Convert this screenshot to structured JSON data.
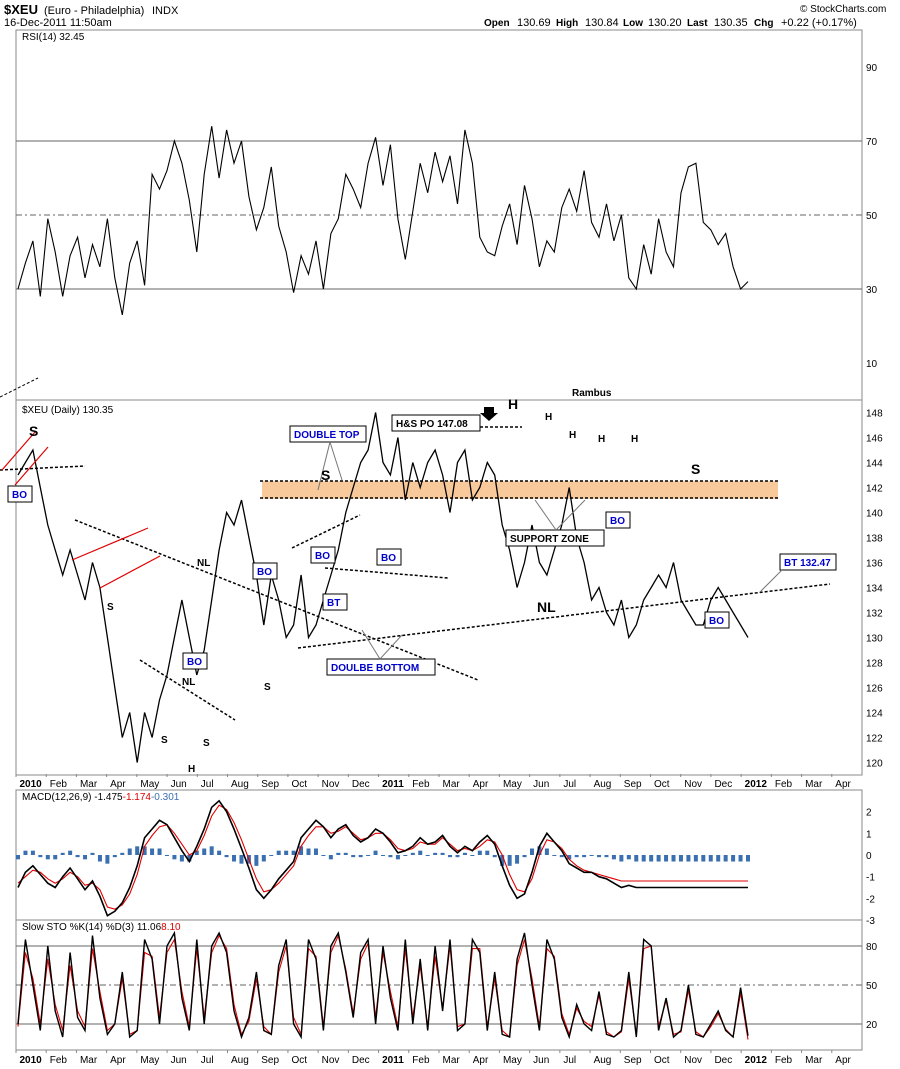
{
  "header": {
    "symbol": "$XEU",
    "description": "(Euro - Philadelphia)",
    "exchange": "INDX",
    "date": "16-Dec-2011 11:50am",
    "open_label": "Open",
    "open": "130.69",
    "high_label": "High",
    "high": "130.84",
    "low_label": "Low",
    "low": "130.20",
    "last_label": "Last",
    "last": "130.35",
    "chg_label": "Chg",
    "chg": "+0.22 (+0.17%)",
    "copyright": "© StockCharts.com"
  },
  "colors": {
    "price": "#000000",
    "signal": "#e00000",
    "histogram": "#3a6fb0",
    "zone": "#f7c08a",
    "label_text": "#0000cc",
    "overbought": "#4a7a4a",
    "oversold": "#8a4a4a"
  },
  "chart_data": [
    {
      "type": "line",
      "title": "RSI(14) 32.45",
      "legend": "RSI(14) 32.45",
      "ylim": [
        0,
        100
      ],
      "yticks": [
        10,
        30,
        50,
        70,
        90
      ],
      "reference_lines": [
        30,
        50,
        70
      ],
      "x": [
        0,
        5,
        10,
        15,
        20,
        25,
        30,
        35,
        40,
        45,
        50,
        55,
        60,
        65,
        70,
        75,
        80,
        85,
        90,
        95,
        100,
        105,
        110,
        115,
        120,
        125,
        130,
        135,
        140,
        145,
        150,
        155,
        160,
        165,
        170,
        175,
        180,
        185,
        190,
        195,
        200,
        205,
        210,
        215,
        220,
        225,
        230,
        235,
        240,
        245,
        250,
        255,
        260,
        265,
        270,
        275,
        280,
        285,
        290,
        295,
        300,
        305,
        310,
        315,
        320,
        325,
        330,
        335,
        340,
        345,
        350,
        355,
        360,
        365,
        370,
        375,
        380,
        385,
        390,
        395,
        400,
        405,
        410,
        415,
        420,
        425,
        430,
        435,
        440,
        445,
        450,
        455,
        460,
        465,
        470,
        475,
        480,
        485,
        490
      ],
      "values": [
        30,
        37,
        43,
        28,
        49,
        40,
        28,
        39,
        44,
        33,
        42,
        36,
        49,
        33,
        23,
        37,
        43,
        31,
        61,
        57,
        62,
        70,
        64,
        54,
        40,
        61,
        74,
        60,
        73,
        64,
        70,
        55,
        46,
        52,
        63,
        47,
        40,
        29,
        39,
        34,
        43,
        30,
        45,
        49,
        61,
        57,
        52,
        64,
        71,
        58,
        69,
        49,
        38,
        51,
        64,
        56,
        67,
        59,
        66,
        53,
        73,
        64,
        44,
        40,
        39,
        47,
        53,
        42,
        58,
        49,
        36,
        43,
        40,
        52,
        57,
        51,
        62,
        48,
        44,
        53,
        43,
        50,
        33,
        30,
        42,
        34,
        49,
        40,
        36,
        56,
        63,
        64,
        48,
        46,
        42,
        45,
        36,
        30,
        32
      ]
    },
    {
      "type": "line",
      "title": "$XEU (Daily) 130.35",
      "legend": "$XEU (Daily) 130.35",
      "ylim": [
        119,
        149
      ],
      "yticks": [
        120,
        122,
        124,
        126,
        128,
        130,
        132,
        134,
        136,
        138,
        140,
        142,
        144,
        146,
        148
      ],
      "x": [
        0,
        5,
        10,
        15,
        20,
        25,
        30,
        35,
        40,
        45,
        50,
        55,
        60,
        65,
        70,
        75,
        80,
        85,
        90,
        95,
        100,
        105,
        110,
        115,
        120,
        125,
        130,
        135,
        140,
        145,
        150,
        155,
        160,
        165,
        170,
        175,
        180,
        185,
        190,
        195,
        200,
        205,
        210,
        215,
        220,
        225,
        230,
        235,
        240,
        245,
        250,
        255,
        260,
        265,
        270,
        275,
        280,
        285,
        290,
        295,
        300,
        305,
        310,
        315,
        320,
        325,
        330,
        335,
        340,
        345,
        350,
        355,
        360,
        365,
        370,
        375,
        380,
        385,
        390,
        395,
        400,
        405,
        410,
        415,
        420,
        425,
        430,
        435,
        440,
        445,
        450,
        455,
        460,
        465,
        470,
        475,
        480,
        485,
        490
      ],
      "values": [
        143,
        144,
        145,
        142,
        139,
        137,
        135,
        137,
        135,
        133,
        136,
        134,
        130,
        126,
        122,
        124,
        120,
        124,
        122,
        125,
        127,
        130,
        133,
        130,
        127,
        129,
        133,
        137,
        140,
        139,
        141,
        138,
        135,
        131,
        135,
        133,
        130,
        131,
        135,
        130,
        131,
        133,
        135,
        137,
        140,
        142,
        144,
        145,
        148,
        144,
        143,
        146,
        141,
        144,
        142,
        144,
        145,
        143,
        140,
        144,
        145,
        141,
        142,
        144,
        143,
        139,
        137,
        134,
        136,
        139,
        136,
        135,
        137,
        139,
        142,
        138,
        136,
        133,
        134,
        132,
        131,
        133,
        130,
        131,
        133,
        134,
        135,
        134,
        136,
        133,
        132,
        131,
        131,
        133,
        134,
        133,
        132,
        131,
        130
      ],
      "annotations": [
        "S",
        "BO",
        "S",
        "NL",
        "BO",
        "NL",
        "S",
        "S",
        "H",
        "S",
        "BO",
        "DOUBLE TOP",
        "S",
        "BO",
        "BT",
        "BO",
        "DOULBE BOTTOM",
        "H&S PO 147.08",
        "H",
        "H",
        "H",
        "H",
        "H",
        "SUPPORT ZONE",
        "BO",
        "S",
        "NL",
        "BT 132.47",
        "BO",
        "Rambus"
      ]
    },
    {
      "type": "line",
      "title": "MACD(12,26,9) -1.475, -1.174, -0.301",
      "legend": [
        "MACD(12,26,9) -1.475",
        "-1.174",
        "-0.301"
      ],
      "ylim": [
        -3,
        3
      ],
      "yticks": [
        -3,
        -2,
        -1,
        0,
        1,
        2
      ],
      "x": [
        0,
        5,
        10,
        15,
        20,
        25,
        30,
        35,
        40,
        45,
        50,
        55,
        60,
        65,
        70,
        75,
        80,
        85,
        90,
        95,
        100,
        105,
        110,
        115,
        120,
        125,
        130,
        135,
        140,
        145,
        150,
        155,
        160,
        165,
        170,
        175,
        180,
        185,
        190,
        195,
        200,
        205,
        210,
        215,
        220,
        225,
        230,
        235,
        240,
        245,
        250,
        255,
        260,
        265,
        270,
        275,
        280,
        285,
        290,
        295,
        300,
        305,
        310,
        315,
        320,
        325,
        330,
        335,
        340,
        345,
        350,
        355,
        360,
        365,
        370,
        375,
        380,
        385,
        390,
        395,
        400,
        405,
        410,
        415,
        420,
        425,
        430,
        435,
        440,
        445,
        450,
        455,
        460,
        465,
        470,
        475,
        480,
        485,
        490
      ],
      "series": [
        {
          "name": "MACD(12,26,9) -1.475",
          "values": [
            -1.5,
            -0.8,
            -0.5,
            -0.9,
            -1.3,
            -1.5,
            -1.0,
            -0.6,
            -1.1,
            -1.6,
            -1.2,
            -1.9,
            -2.8,
            -2.6,
            -2.2,
            -1.5,
            -0.5,
            0.8,
            1.2,
            1.6,
            1.4,
            0.8,
            0.2,
            -0.3,
            0.4,
            1.2,
            2.2,
            2.5,
            2.0,
            1.2,
            0.3,
            -0.6,
            -1.6,
            -2.0,
            -1.6,
            -1.1,
            -0.7,
            -0.3,
            0.8,
            1.2,
            1.6,
            1.3,
            0.8,
            1.2,
            1.4,
            0.9,
            0.6,
            0.8,
            1.2,
            1.0,
            0.6,
            0.1,
            0.2,
            0.4,
            0.8,
            0.5,
            0.6,
            0.9,
            0.4,
            0.1,
            0.4,
            0.2,
            0.6,
            0.9,
            0.5,
            -0.5,
            -1.4,
            -2.0,
            -1.8,
            -0.8,
            0.4,
            1.0,
            0.6,
            0.2,
            -0.4,
            -0.6,
            -0.8,
            -0.8,
            -1.0,
            -1.1,
            -1.3,
            -1.5,
            -1.4,
            -1.5,
            -1.5,
            -1.5,
            -1.5,
            -1.5,
            -1.5,
            -1.5,
            -1.5,
            -1.5,
            -1.5,
            -1.5,
            -1.5,
            -1.5,
            -1.5,
            -1.5,
            -1.5
          ]
        },
        {
          "name": "-1.174",
          "values": [
            -1.3,
            -1.0,
            -0.7,
            -0.8,
            -1.1,
            -1.3,
            -1.1,
            -0.8,
            -1.0,
            -1.4,
            -1.3,
            -1.6,
            -2.4,
            -2.5,
            -2.3,
            -1.8,
            -0.9,
            0.4,
            0.9,
            1.3,
            1.4,
            1.0,
            0.5,
            0.0,
            0.2,
            0.9,
            1.8,
            2.3,
            2.1,
            1.5,
            0.7,
            -0.2,
            -1.1,
            -1.7,
            -1.6,
            -1.3,
            -0.9,
            -0.5,
            0.4,
            0.9,
            1.3,
            1.3,
            1.0,
            1.1,
            1.3,
            1.0,
            0.7,
            0.8,
            1.0,
            1.0,
            0.7,
            0.3,
            0.2,
            0.3,
            0.6,
            0.5,
            0.5,
            0.8,
            0.5,
            0.2,
            0.3,
            0.2,
            0.4,
            0.7,
            0.6,
            0.0,
            -0.9,
            -1.6,
            -1.7,
            -1.1,
            0.0,
            0.7,
            0.6,
            0.3,
            -0.2,
            -0.5,
            -0.7,
            -0.8,
            -0.9,
            -1.0,
            -1.1,
            -1.2,
            -1.2,
            -1.2,
            -1.2,
            -1.2,
            -1.2,
            -1.2,
            -1.2,
            -1.2,
            -1.2,
            -1.2,
            -1.2,
            -1.2,
            -1.2,
            -1.2,
            -1.2,
            -1.2,
            -1.2
          ]
        }
      ]
    },
    {
      "type": "line",
      "title": "Slow STO %K(14) %D(3) 11.06, 8.10",
      "legend": [
        "Slow STO %K(14) %D(3) 11.06",
        "8.10"
      ],
      "ylim": [
        0,
        100
      ],
      "yticks": [
        20,
        50,
        80
      ],
      "reference_lines": [
        20,
        50,
        80
      ],
      "x": [
        0,
        5,
        10,
        15,
        20,
        25,
        30,
        35,
        40,
        45,
        50,
        55,
        60,
        65,
        70,
        75,
        80,
        85,
        90,
        95,
        100,
        105,
        110,
        115,
        120,
        125,
        130,
        135,
        140,
        145,
        150,
        155,
        160,
        165,
        170,
        175,
        180,
        185,
        190,
        195,
        200,
        205,
        210,
        215,
        220,
        225,
        230,
        235,
        240,
        245,
        250,
        255,
        260,
        265,
        270,
        275,
        280,
        285,
        290,
        295,
        300,
        305,
        310,
        315,
        320,
        325,
        330,
        335,
        340,
        345,
        350,
        355,
        360,
        365,
        370,
        375,
        380,
        385,
        390,
        395,
        400,
        405,
        410,
        415,
        420,
        425,
        430,
        435,
        440,
        445,
        450,
        455,
        460,
        465,
        470,
        475,
        480,
        485,
        490
      ],
      "series": [
        {
          "name": "Slow STO %K(14) %D(3) 11.06",
          "values": [
            20,
            85,
            50,
            15,
            80,
            30,
            10,
            75,
            25,
            15,
            88,
            40,
            12,
            20,
            60,
            10,
            15,
            85,
            70,
            20,
            80,
            90,
            40,
            15,
            85,
            20,
            80,
            90,
            75,
            30,
            10,
            25,
            60,
            15,
            12,
            65,
            85,
            20,
            10,
            85,
            70,
            15,
            80,
            90,
            60,
            25,
            75,
            85,
            20,
            80,
            40,
            15,
            85,
            20,
            70,
            15,
            80,
            30,
            85,
            15,
            20,
            85,
            75,
            15,
            60,
            12,
            10,
            70,
            90,
            50,
            15,
            85,
            70,
            25,
            10,
            35,
            20,
            15,
            45,
            12,
            10,
            15,
            60,
            10,
            85,
            80,
            15,
            40,
            10,
            15,
            50,
            12,
            10,
            20,
            30,
            15,
            10,
            48,
            11
          ]
        },
        {
          "name": "8.10",
          "values": [
            18,
            75,
            55,
            20,
            70,
            35,
            15,
            65,
            30,
            18,
            78,
            45,
            15,
            20,
            55,
            12,
            15,
            75,
            72,
            25,
            75,
            85,
            45,
            18,
            78,
            25,
            75,
            88,
            78,
            35,
            12,
            22,
            55,
            18,
            12,
            60,
            80,
            25,
            12,
            78,
            72,
            18,
            75,
            88,
            62,
            28,
            70,
            82,
            25,
            75,
            45,
            18,
            78,
            25,
            65,
            18,
            72,
            32,
            80,
            18,
            20,
            78,
            78,
            18,
            55,
            15,
            10,
            65,
            85,
            55,
            18,
            78,
            72,
            28,
            12,
            32,
            22,
            18,
            42,
            14,
            10,
            14,
            55,
            12,
            78,
            80,
            18,
            38,
            12,
            14,
            46,
            14,
            10,
            18,
            28,
            16,
            10,
            44,
            8
          ]
        }
      ]
    }
  ],
  "xaxis_top": [
    "2010",
    "Feb",
    "Mar",
    "Apr",
    "May",
    "Jun",
    "Jul",
    "Aug",
    "Sep",
    "Oct",
    "Nov",
    "Dec",
    "2011",
    "Feb",
    "Mar",
    "Apr",
    "May",
    "Jun",
    "Jul",
    "Aug",
    "Sep",
    "Oct",
    "Nov",
    "Dec",
    "2012",
    "Feb",
    "Mar",
    "Apr"
  ],
  "xaxis_bottom": [
    "2010",
    "Feb",
    "Mar",
    "Apr",
    "May",
    "Jun",
    "Jul",
    "Aug",
    "Sep",
    "Oct",
    "Nov",
    "Dec",
    "2011",
    "Feb",
    "Mar",
    "Apr",
    "May",
    "Jun",
    "Jul",
    "Aug",
    "Sep",
    "Oct",
    "Nov",
    "Dec",
    "2012",
    "Feb",
    "Mar",
    "Apr"
  ],
  "labels": {
    "double_top": "DOUBLE TOP",
    "double_bottom": "DOULBE BOTTOM",
    "support_zone": "SUPPORT ZONE",
    "hs_po": "H&S PO 147.08",
    "bt_13247": "BT 132.47",
    "bo": "BO",
    "bt": "BT",
    "nl": "NL",
    "s": "S",
    "h": "H",
    "rambus": "Rambus"
  }
}
